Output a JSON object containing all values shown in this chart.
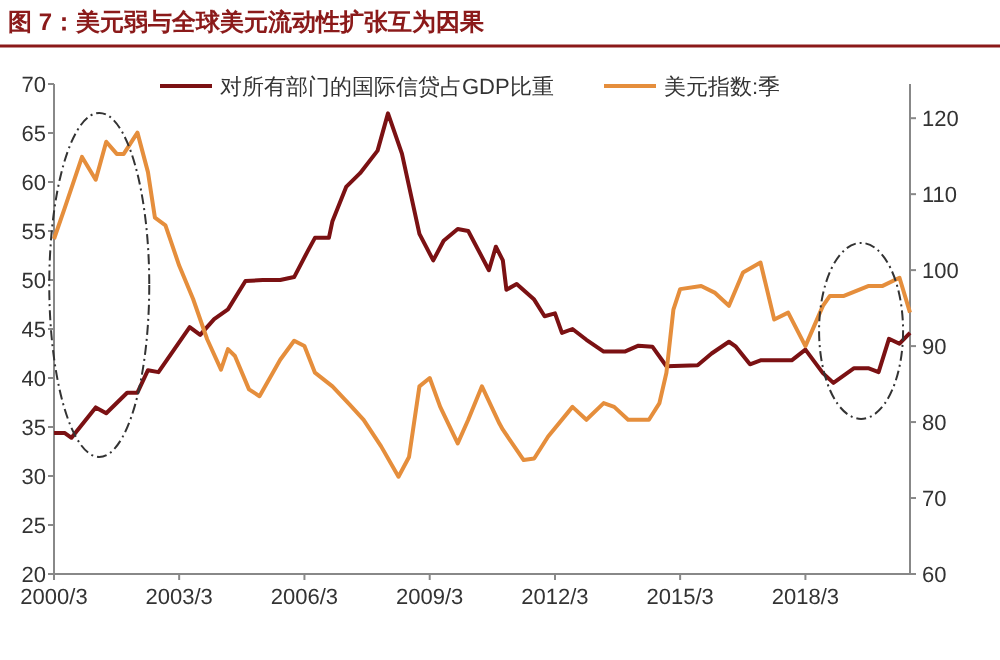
{
  "chart_data": {
    "type": "line",
    "title": "图 7：美元弱与全球美元流动性扩张互为因果",
    "legend": "top",
    "grid": false,
    "line_style": "solid",
    "xlim": [
      "2000-03",
      "2020-09"
    ],
    "xticks": [
      {
        "value": "2000-03",
        "label": "2000/3"
      },
      {
        "value": "2003-03",
        "label": "2003/3"
      },
      {
        "value": "2006-03",
        "label": "2006/3"
      },
      {
        "value": "2009-03",
        "label": "2009/3"
      },
      {
        "value": "2012-03",
        "label": "2012/3"
      },
      {
        "value": "2015-03",
        "label": "2015/3"
      },
      {
        "value": "2018-03",
        "label": "2018/3"
      }
    ],
    "ylim": [
      20,
      70
    ],
    "yticks": [
      20,
      25,
      30,
      35,
      40,
      45,
      50,
      55,
      60,
      65,
      70
    ],
    "y2lim": [
      60,
      124.5
    ],
    "y2ticks": [
      60,
      70,
      80,
      90,
      100,
      110,
      120
    ],
    "series": [
      {
        "name": "对所有部门的国际信贷占GDP比重",
        "color": "#7b1113",
        "x": [
          "2000-03",
          "2000-06",
          "2000-08",
          "2001-03",
          "2001-06",
          "2001-12",
          "2002-03",
          "2002-06",
          "2002-09",
          "2003-06",
          "2003-09",
          "2004-01",
          "2004-05",
          "2004-10",
          "2005-03",
          "2005-08",
          "2005-12",
          "2006-04",
          "2006-06",
          "2006-10",
          "2006-11",
          "2007-03",
          "2007-07",
          "2007-12",
          "2008-03",
          "2008-07",
          "2008-12",
          "2009-04",
          "2009-07",
          "2009-11",
          "2010-02",
          "2010-08",
          "2010-10",
          "2010-12",
          "2011-01",
          "2011-04",
          "2011-09",
          "2011-12",
          "2012-03",
          "2012-05",
          "2012-08",
          "2012-12",
          "2013-05",
          "2013-11",
          "2014-03",
          "2014-07",
          "2014-11",
          "2015-08",
          "2015-12",
          "2016-05",
          "2016-07",
          "2016-11",
          "2017-02",
          "2017-11",
          "2018-03",
          "2018-08",
          "2018-11",
          "2019-05",
          "2019-09",
          "2019-12",
          "2020-03",
          "2020-06",
          "2020-09"
        ],
        "values": [
          34.4,
          34.4,
          33.9,
          37,
          36.4,
          38.5,
          38.5,
          40.8,
          40.6,
          45.2,
          44.4,
          46,
          47,
          49.9,
          50,
          50,
          50.3,
          53,
          54.3,
          54.3,
          56,
          59.5,
          60.9,
          63.2,
          67,
          62.9,
          54.7,
          52,
          54,
          55.2,
          55,
          51,
          53.4,
          52,
          49,
          49.6,
          48,
          46.3,
          46.6,
          44.6,
          45,
          43.9,
          42.7,
          42.7,
          43.3,
          43.2,
          41.2,
          41.3,
          42.5,
          43.7,
          43.2,
          41.4,
          41.8,
          41.8,
          42.9,
          40.5,
          39.5,
          41,
          41,
          40.6,
          44,
          43.5,
          44.6
        ]
      },
      {
        "name": "美元指数:季",
        "color": "#e58e3c",
        "axis": "y2",
        "x": [
          "2000-03",
          "2000-06",
          "2000-11",
          "2001-03",
          "2001-06",
          "2001-09",
          "2001-11",
          "2002-03",
          "2002-06",
          "2002-08",
          "2002-11",
          "2003-03",
          "2003-07",
          "2003-11",
          "2004-03",
          "2004-05",
          "2004-07",
          "2004-11",
          "2005-02",
          "2005-08",
          "2005-12",
          "2006-03",
          "2006-06",
          "2006-11",
          "2007-04",
          "2007-08",
          "2008-01",
          "2008-06",
          "2008-09",
          "2008-12",
          "2009-03",
          "2009-06",
          "2009-11",
          "2010-02",
          "2010-06",
          "2010-11",
          "2010-12",
          "2011-06",
          "2011-09",
          "2012-01",
          "2012-08",
          "2012-12",
          "2013-05",
          "2013-08",
          "2013-12",
          "2014-06",
          "2014-09",
          "2014-11",
          "2015-01",
          "2015-03",
          "2015-09",
          "2016-01",
          "2016-05",
          "2016-09",
          "2017-02",
          "2017-06",
          "2017-10",
          "2018-03",
          "2018-08",
          "2018-10",
          "2019-02",
          "2019-09",
          "2020-01",
          "2020-06",
          "2020-09"
        ],
        "values": [
          104.1,
          108.1,
          114.9,
          111.9,
          116.9,
          115.3,
          115.3,
          118.1,
          112.9,
          106.9,
          105.9,
          100.6,
          96.2,
          90.9,
          86.9,
          89.6,
          88.7,
          84.3,
          83.4,
          88.2,
          90.7,
          90,
          86.5,
          84.7,
          82.3,
          80.3,
          76.8,
          72.8,
          75.4,
          84.7,
          85.8,
          82,
          77.2,
          80.3,
          84.7,
          79.8,
          79,
          75,
          75.2,
          78.1,
          82,
          80.3,
          82.5,
          82,
          80.3,
          80.3,
          82.5,
          86.5,
          94.8,
          97.5,
          97.9,
          97,
          95.3,
          99.7,
          101,
          93.5,
          94.4,
          90,
          95.3,
          96.6,
          96.6,
          97.9,
          97.9,
          99,
          94.4
        ]
      }
    ]
  }
}
